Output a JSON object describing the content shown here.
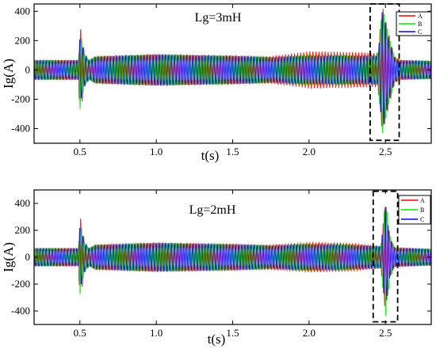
{
  "chart_data": [
    {
      "type": "line",
      "title": "Lg=3mH",
      "xlabel": "t(s)",
      "ylabel": "Ig(A)",
      "xlim": [
        0.2,
        2.8
      ],
      "ylim": [
        -500,
        450
      ],
      "xticks": [
        0.5,
        1.0,
        1.5,
        2.0,
        2.5
      ],
      "xtick_labels": [
        "0.5",
        "1.0",
        "1.5",
        "2.0",
        "2.5"
      ],
      "yticks": [
        -400,
        -200,
        0,
        200,
        400
      ],
      "ytick_labels": [
        "-400",
        "-200",
        "0",
        "200",
        "400"
      ],
      "grid": false,
      "legend": "top-right",
      "highlight_box_x": [
        2.4,
        2.59
      ],
      "highlight_box_y": [
        -480,
        450
      ],
      "series": [
        {
          "name": "A",
          "color": "#ff0000",
          "envelope_t": [
            0.2,
            0.49,
            0.5,
            0.53,
            0.56,
            0.6,
            1.0,
            1.5,
            1.75,
            2.0,
            2.25,
            2.45,
            2.48,
            2.52,
            2.56,
            2.6,
            2.8
          ],
          "envelope_amp": [
            65,
            65,
            310,
            120,
            65,
            90,
            105,
            95,
            90,
            125,
            120,
            115,
            440,
            260,
            90,
            65,
            60
          ]
        },
        {
          "name": "B",
          "color": "#00ee00",
          "envelope_t": [
            0.2,
            0.49,
            0.5,
            0.53,
            0.56,
            0.6,
            1.0,
            1.5,
            1.75,
            2.0,
            2.25,
            2.45,
            2.48,
            2.52,
            2.56,
            2.6,
            2.8
          ],
          "envelope_amp": [
            65,
            65,
            275,
            110,
            65,
            90,
            105,
            95,
            85,
            105,
            100,
            100,
            440,
            240,
            85,
            65,
            60
          ]
        },
        {
          "name": "C",
          "color": "#0000ff",
          "envelope_t": [
            0.2,
            0.49,
            0.5,
            0.53,
            0.56,
            0.6,
            1.0,
            1.5,
            1.75,
            2.0,
            2.25,
            2.45,
            2.48,
            2.52,
            2.56,
            2.6,
            2.8
          ],
          "envelope_amp": [
            65,
            65,
            230,
            100,
            65,
            90,
            105,
            95,
            85,
            95,
            95,
            95,
            410,
            220,
            80,
            65,
            60
          ]
        }
      ]
    },
    {
      "type": "line",
      "title": "Lg=2mH",
      "xlabel": "t(s)",
      "ylabel": "Ig(A)",
      "xlim": [
        0.2,
        2.8
      ],
      "ylim": [
        -500,
        500
      ],
      "xticks": [
        0.5,
        1.0,
        1.5,
        2.0,
        2.5
      ],
      "xtick_labels": [
        "0.5",
        "1.0",
        "1.5",
        "2.0",
        "2.5"
      ],
      "yticks": [
        -400,
        -200,
        0,
        200,
        400
      ],
      "ytick_labels": [
        "-400",
        "-200",
        "0",
        "200",
        "400"
      ],
      "grid": false,
      "legend": "top-right",
      "highlight_box_x": [
        2.42,
        2.58
      ],
      "highlight_box_y": [
        -480,
        490
      ],
      "series": [
        {
          "name": "A",
          "color": "#ff0000",
          "envelope_t": [
            0.2,
            0.49,
            0.5,
            0.53,
            0.56,
            0.6,
            1.0,
            1.5,
            1.75,
            2.0,
            2.25,
            2.47,
            2.5,
            2.53,
            2.56,
            2.8
          ],
          "envelope_amp": [
            65,
            65,
            320,
            120,
            65,
            90,
            105,
            95,
            90,
            110,
            105,
            80,
            420,
            150,
            70,
            60
          ]
        },
        {
          "name": "B",
          "color": "#00ee00",
          "envelope_t": [
            0.2,
            0.49,
            0.5,
            0.53,
            0.56,
            0.6,
            1.0,
            1.5,
            1.75,
            2.0,
            2.25,
            2.47,
            2.5,
            2.53,
            2.56,
            2.8
          ],
          "envelope_amp": [
            65,
            65,
            285,
            110,
            65,
            90,
            105,
            95,
            85,
            100,
            95,
            80,
            450,
            160,
            70,
            60
          ]
        },
        {
          "name": "C",
          "color": "#0000ff",
          "envelope_t": [
            0.2,
            0.49,
            0.5,
            0.53,
            0.56,
            0.6,
            1.0,
            1.5,
            1.75,
            2.0,
            2.25,
            2.47,
            2.5,
            2.53,
            2.56,
            2.8
          ],
          "envelope_amp": [
            65,
            65,
            240,
            100,
            65,
            90,
            105,
            95,
            85,
            95,
            90,
            80,
            390,
            140,
            70,
            60
          ]
        }
      ]
    }
  ]
}
